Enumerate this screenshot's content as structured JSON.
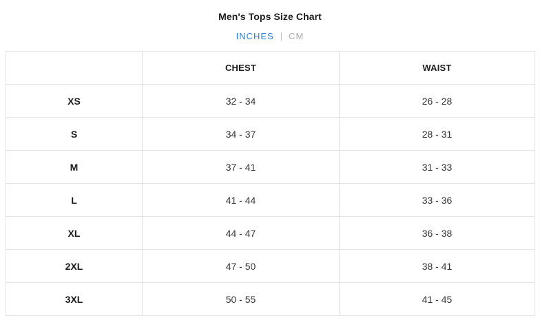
{
  "header": {
    "title": "Men's Tops Size Chart",
    "unit_toggle": {
      "active_label": "INCHES",
      "inactive_label": "CM",
      "separator": "|"
    }
  },
  "table": {
    "columns": [
      "",
      "CHEST",
      "WAIST"
    ],
    "rows": [
      {
        "size": "XS",
        "chest": "32 - 34",
        "waist": "26 - 28"
      },
      {
        "size": "S",
        "chest": "34 - 37",
        "waist": "28 - 31"
      },
      {
        "size": "M",
        "chest": "37 - 41",
        "waist": "31 - 33"
      },
      {
        "size": "L",
        "chest": "41 - 44",
        "waist": "33 - 36"
      },
      {
        "size": "XL",
        "chest": "44 - 47",
        "waist": "36 - 38"
      },
      {
        "size": "2XL",
        "chest": "47 - 50",
        "waist": "38 - 41"
      },
      {
        "size": "3XL",
        "chest": "50 - 55",
        "waist": "41 - 45"
      }
    ]
  },
  "colors": {
    "accent_blue": "#2e7fd8",
    "inactive_gray": "#a9a9a9",
    "border_gray": "#e3e3e3",
    "text_dark": "#1c1c1c"
  }
}
